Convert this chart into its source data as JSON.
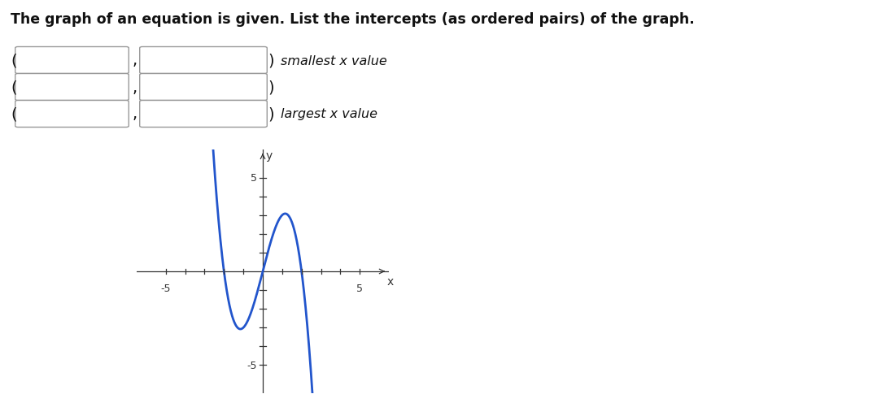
{
  "title": "The graph of an equation is given. List the intercepts (as ordered pairs) of the graph.",
  "rows": [
    {
      "annotation": "smallest x value"
    },
    {
      "annotation": ""
    },
    {
      "annotation": "largest x value"
    }
  ],
  "xlim": [
    -6.5,
    6.5
  ],
  "ylim": [
    -6.5,
    6.5
  ],
  "xticks": [
    -5,
    -4,
    -3,
    -2,
    -1,
    1,
    2,
    3,
    4,
    5
  ],
  "yticks": [
    -5,
    -4,
    -3,
    -2,
    -1,
    1,
    2,
    3,
    4,
    5
  ],
  "curve_color": "#2255cc",
  "curve_linewidth": 2.0,
  "background_color": "#ffffff",
  "axis_color": "#333333",
  "tick_label_fontsize": 9,
  "title_fontsize": 12.5,
  "text_color": "#111111"
}
